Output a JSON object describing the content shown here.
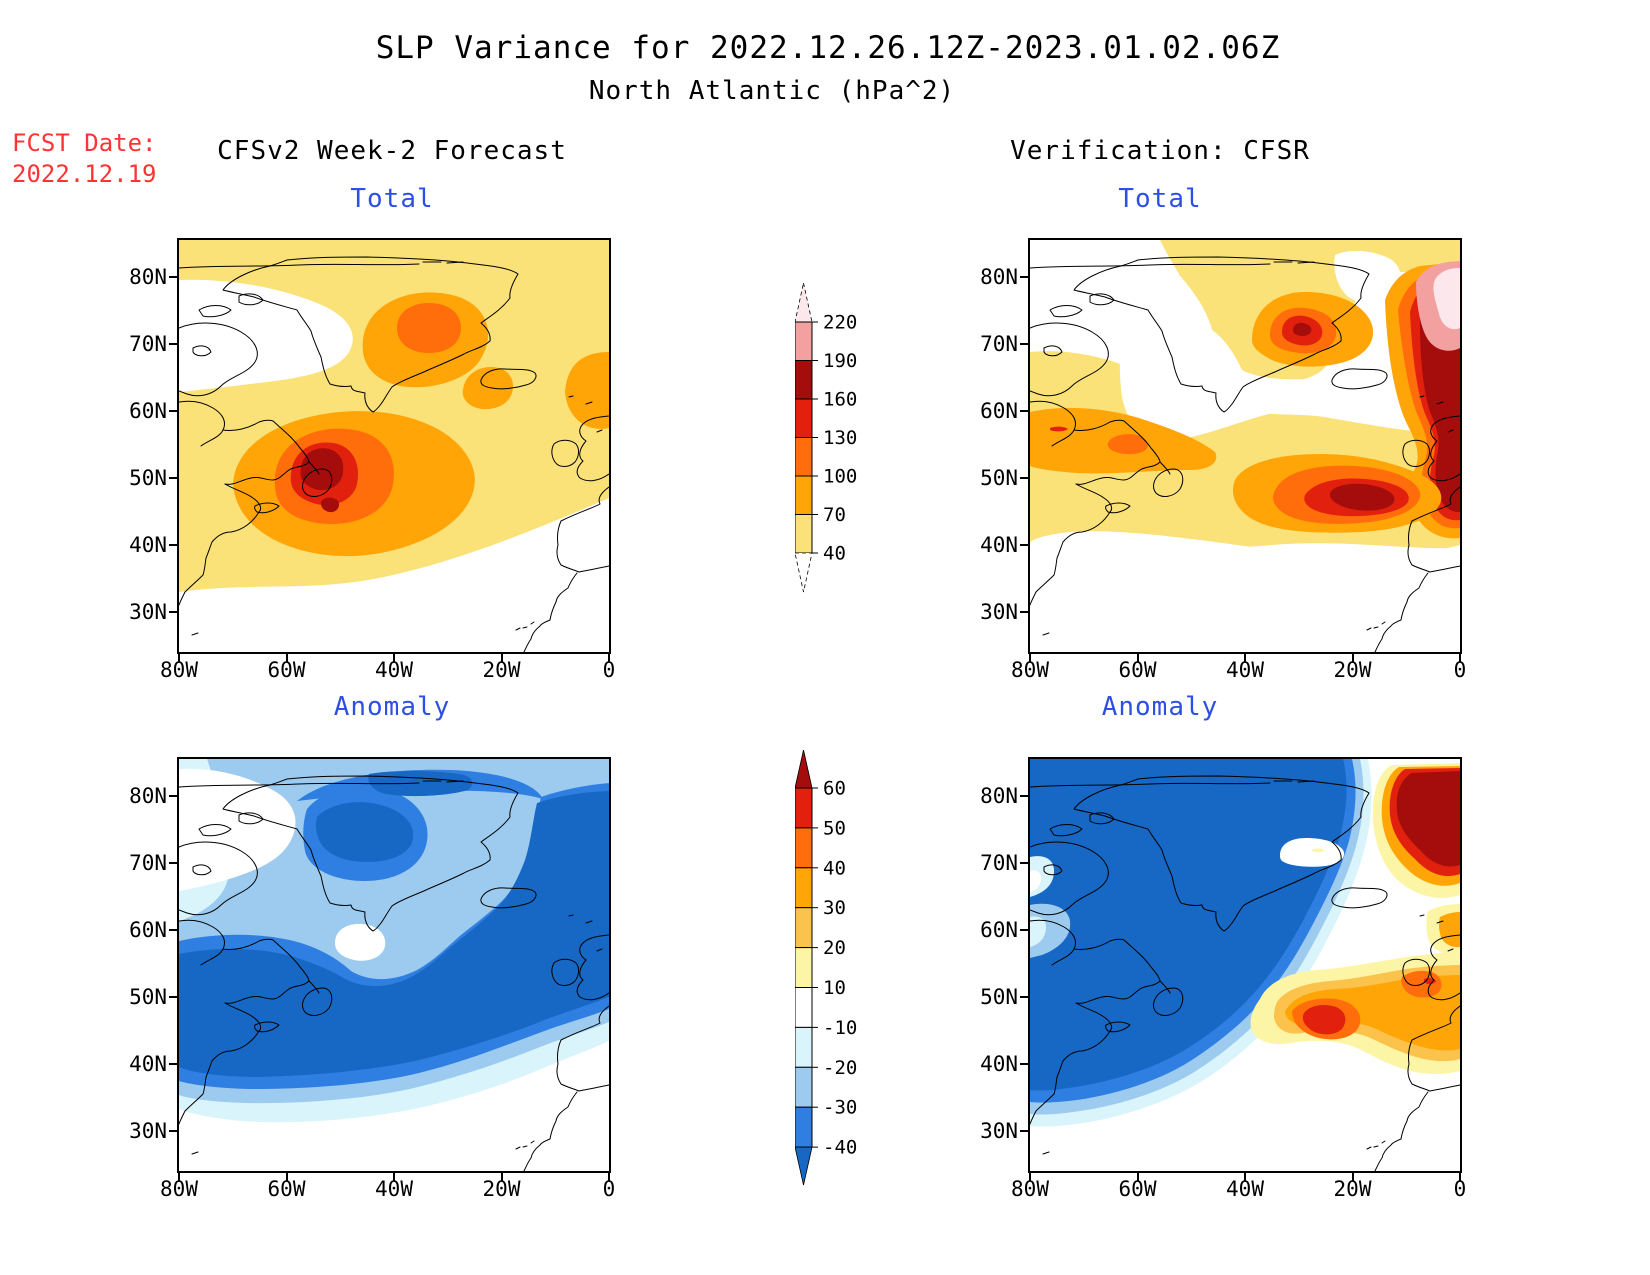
{
  "header": {
    "title_line1": "SLP Variance for 2022.12.26.12Z-2023.01.02.06Z",
    "title_line2": "North Atlantic (hPa^2)",
    "fcst_label": "FCST Date:",
    "fcst_value": "2022.12.19",
    "left_column_header": "CFSv2 Week-2 Forecast",
    "right_column_header": "Verification: CFSR"
  },
  "panels": [
    {
      "id": "forecast-total",
      "title": "Total"
    },
    {
      "id": "verification-total",
      "title": "Total"
    },
    {
      "id": "forecast-anomaly",
      "title": "Anomaly"
    },
    {
      "id": "verification-anomaly",
      "title": "Anomaly"
    }
  ],
  "axes": {
    "x_ticks": [
      "80W",
      "60W",
      "40W",
      "20W",
      "0"
    ],
    "y_ticks": [
      "80N",
      "70N",
      "60N",
      "50N",
      "40N",
      "30N"
    ]
  },
  "colors": {
    "accent_red": "#ff3333",
    "panel_title_blue": "#2e4fe3",
    "coastline": "#000000",
    "text": "#000000"
  },
  "palette": {
    "white": "#ffffff",
    "yellow1": "#fae178",
    "paleYellow": "#fdf5a6",
    "yellowOrange": "#fcc34c",
    "orange": "#ffa508",
    "darkOrange": "#ff6e0a",
    "red": "#e1210e",
    "darkRed": "#a50d0d",
    "pink": "#f2a0a0",
    "palePink": "#fce8ec",
    "paleBlue": "#d9f4fb",
    "lightBlue": "#9ccbef",
    "medBlue": "#2f7fe2",
    "darkBlue": "#1767c4"
  },
  "colorbars": {
    "total": {
      "tick_labels": [
        "220",
        "190",
        "160",
        "130",
        "100",
        "70",
        "40"
      ],
      "segments_top_to_bottom": [
        "pink",
        "darkRed",
        "red",
        "darkOrange",
        "orange",
        "yellow1"
      ],
      "top_tip": "palePink",
      "bottom_tip": "white",
      "tip_outline": "dashed"
    },
    "anomaly": {
      "tick_labels": [
        "60",
        "50",
        "40",
        "30",
        "20",
        "10",
        "-10",
        "-20",
        "-30",
        "-40"
      ],
      "segments_top_to_bottom": [
        "red",
        "darkOrange",
        "orange",
        "yellowOrange",
        "paleYellow",
        "white",
        "paleBlue",
        "lightBlue",
        "medBlue"
      ],
      "top_tip": "darkRed",
      "bottom_tip": "darkBlue",
      "tip_outline": "solid"
    }
  },
  "chart_data": [
    {
      "type": "heatmap",
      "panel": "forecast-total",
      "group": "CFSv2 Week-2 Forecast",
      "title": "Total",
      "units": "hPa^2",
      "x_domain": [
        "80W",
        "0"
      ],
      "y_domain": [
        "25N",
        "85N"
      ],
      "contour_levels": [
        40,
        70,
        100,
        130,
        160,
        190,
        220
      ],
      "features": [
        {
          "region": "primary variance maximum SE of Newfoundland",
          "center": {
            "lat": "51N",
            "lon": "53W"
          },
          "value": "160-190"
        },
        {
          "region": "secondary core just south of primary max",
          "center": {
            "lat": "46N",
            "lon": "52W"
          },
          "value": "160-190"
        },
        {
          "region": "blob over central-east Greenland / Denmark Strait",
          "center": {
            "lat": "72N",
            "lon": "36W"
          },
          "value": "100-130"
        },
        {
          "region": "patch southeast of Iceland",
          "center": {
            "lat": "63N",
            "lon": "22W"
          },
          "value": "70-100"
        },
        {
          "region": "Norwegian Sea at east edge",
          "center": {
            "lat": "62N",
            "lon": "3W"
          },
          "value": "70-100"
        },
        {
          "region": "broad background over most of domain",
          "value": "40-70"
        },
        {
          "region": "NE Canada archipelago and subtropics south of ~38N",
          "value": "below 40 (white)"
        }
      ]
    },
    {
      "type": "heatmap",
      "panel": "verification-total",
      "group": "Verification: CFSR",
      "title": "Total",
      "units": "hPa^2",
      "x_domain": [
        "80W",
        "0"
      ],
      "y_domain": [
        "25N",
        "85N"
      ],
      "contour_levels": [
        40,
        70,
        100,
        130,
        160,
        190,
        220
      ],
      "features": [
        {
          "region": "extreme maximum Norwegian Sea / NE corner at east edge",
          "center": {
            "lat": "72N",
            "lon": "2W"
          },
          "value": "above 220"
        },
        {
          "region": "strong band NE Atlantic toward Scotland",
          "center": {
            "lat": "58N",
            "lon": "4W"
          },
          "value": "160-190"
        },
        {
          "region": "central North Atlantic maximum",
          "center": {
            "lat": "47N",
            "lon": "27W"
          },
          "value": "160-190"
        },
        {
          "region": "east Greenland blob",
          "center": {
            "lat": "72N",
            "lon": "33W"
          },
          "value": "130-160"
        },
        {
          "region": "band over Labrador / Hudson Strait",
          "center": {
            "lat": "55N",
            "lon": "67W"
          },
          "value": "100-130"
        },
        {
          "region": "zonal band 40-55N across basin",
          "value": "70-100"
        },
        {
          "region": "south of ~40N, central Greenland, NW Canada",
          "value": "below 40 (white)"
        }
      ]
    },
    {
      "type": "heatmap",
      "panel": "forecast-anomaly",
      "group": "CFSv2 Week-2 Forecast",
      "title": "Anomaly",
      "units": "hPa^2",
      "x_domain": [
        "80W",
        "0"
      ],
      "y_domain": [
        "25N",
        "85N"
      ],
      "contour_levels": [
        -40,
        -30,
        -20,
        -10,
        10,
        20,
        30,
        40,
        50,
        60
      ],
      "features": [
        {
          "region": "large negative anomaly over central North Atlantic 35-62N",
          "value": "below -40"
        },
        {
          "region": "Davis Strait / west of Greenland lobe",
          "center": {
            "lat": "74N",
            "lon": "48W"
          },
          "value": "below -40"
        },
        {
          "region": "tongue along NE edge toward Norwegian Sea",
          "value": "below -40"
        },
        {
          "region": "fringes grading outward",
          "value": "-40 to -10"
        },
        {
          "region": "NW Canada, spot S of Greenland, far SE corner",
          "value": "-10 to 10 (near zero)"
        },
        {
          "region": "no positive anomalies present",
          "value": "none above +10"
        }
      ]
    },
    {
      "type": "heatmap",
      "panel": "verification-anomaly",
      "group": "Verification: CFSR",
      "title": "Anomaly",
      "units": "hPa^2",
      "x_domain": [
        "80W",
        "0"
      ],
      "y_domain": [
        "25N",
        "85N"
      ],
      "contour_levels": [
        -40,
        -30,
        -20,
        -10,
        10,
        20,
        30,
        40,
        50,
        60
      ],
      "features": [
        {
          "region": "very large negative anomaly covering W and N of domain",
          "value": "below -40"
        },
        {
          "region": "strong positive anomaly Norwegian Sea NE corner",
          "center": {
            "lat": "73N",
            "lon": "3W"
          },
          "value": "above 60"
        },
        {
          "region": "positive core west of Biscay",
          "center": {
            "lat": "45N",
            "lon": "26W"
          },
          "value": "50-60"
        },
        {
          "region": "positive band around Ireland / UK",
          "value": "30-50"
        },
        {
          "region": "near-zero pocket north of Iceland with small +10-20 speck",
          "center": {
            "lat": "72N",
            "lon": "26W"
          },
          "value": "-10 to 10"
        },
        {
          "region": "Iberia / NW Africa corner",
          "value": "-10 to 10"
        }
      ]
    }
  ]
}
